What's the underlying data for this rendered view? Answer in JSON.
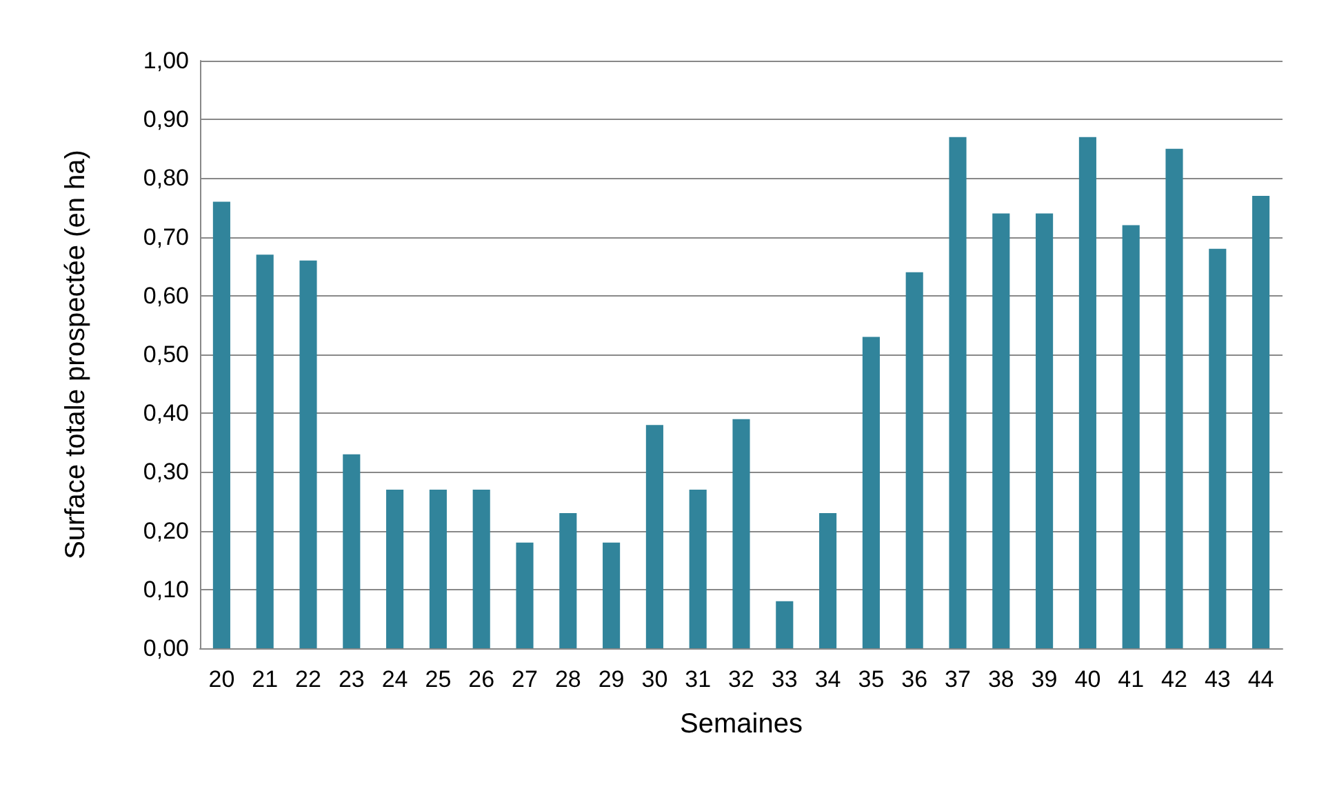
{
  "chart_data": {
    "type": "bar",
    "xlabel": "Semaines",
    "ylabel": "Surface totale prospectée (en ha)",
    "categories": [
      "20",
      "21",
      "22",
      "23",
      "24",
      "25",
      "26",
      "27",
      "28",
      "29",
      "30",
      "31",
      "32",
      "33",
      "34",
      "35",
      "36",
      "37",
      "38",
      "39",
      "40",
      "41",
      "42",
      "43",
      "44"
    ],
    "values": [
      0.76,
      0.67,
      0.66,
      0.33,
      0.27,
      0.27,
      0.27,
      0.18,
      0.23,
      0.18,
      0.38,
      0.27,
      0.39,
      0.08,
      0.23,
      0.53,
      0.64,
      0.87,
      0.74,
      0.74,
      0.87,
      0.72,
      0.85,
      0.68,
      0.77
    ],
    "color": "#31849b",
    "ylim": [
      0,
      1
    ],
    "yticks": [
      {
        "value": 0,
        "label": "0,00"
      },
      {
        "value": 0.1,
        "label": "0,10"
      },
      {
        "value": 0.2,
        "label": "0,20"
      },
      {
        "value": 0.3,
        "label": "0,30"
      },
      {
        "value": 0.4,
        "label": "0,40"
      },
      {
        "value": 0.5,
        "label": "0,50"
      },
      {
        "value": 0.6,
        "label": "0,60"
      },
      {
        "value": 0.7,
        "label": "0,70"
      },
      {
        "value": 0.8,
        "label": "0,80"
      },
      {
        "value": 0.9,
        "label": "0,90"
      },
      {
        "value": 1,
        "label": "1,00"
      }
    ],
    "grid": "y"
  }
}
